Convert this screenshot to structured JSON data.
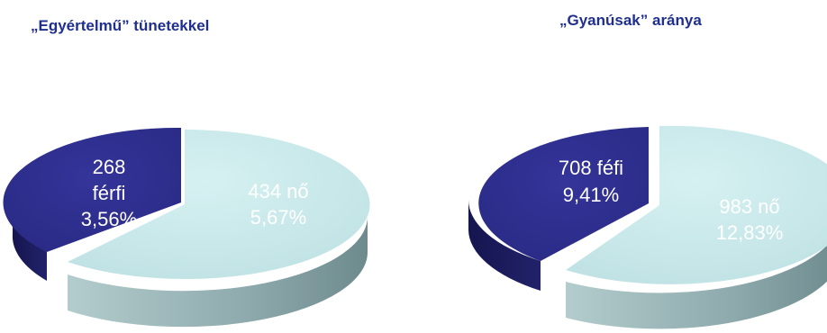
{
  "chart_data": [
    {
      "type": "pie",
      "title": "„Egyértelmű” tünetekkel",
      "slices": [
        {
          "label_lines": [
            "268",
            "férfi",
            "3,56%"
          ],
          "count": 268,
          "percent": 3.56,
          "color": "#2e2e8c"
        },
        {
          "label_lines": [
            "434 nő",
            "5,67%"
          ],
          "count": 434,
          "percent": 5.67,
          "color": "#c6e8e9"
        }
      ]
    },
    {
      "type": "pie",
      "title": "„Gyanúsak” aránya",
      "slices": [
        {
          "label_lines": [
            "708 féfi",
            "9,41%"
          ],
          "count": 708,
          "percent": 9.41,
          "color": "#2e2e8c"
        },
        {
          "label_lines": [
            "983 nő",
            "12,83%"
          ],
          "count": 983,
          "percent": 12.83,
          "color": "#c6e8e9"
        }
      ]
    }
  ],
  "colors": {
    "title": "#1f2f8f",
    "male_label": "#ffffff",
    "female_label": "#ffffff"
  }
}
